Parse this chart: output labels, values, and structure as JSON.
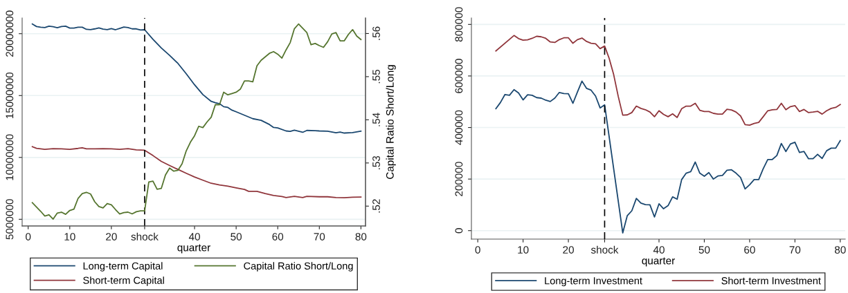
{
  "chart_data": [
    {
      "type": "line",
      "xlabel": "quarter",
      "y2label": "Capital Ratio Short/Long",
      "xlim": [
        -1.45,
        81.1
      ],
      "xticks": [
        0,
        10,
        20,
        {
          "value": 28,
          "label": "shock"
        },
        40,
        50,
        60,
        70,
        80
      ],
      "ylim": [
        4460000,
        21270000
      ],
      "yticks": [
        5000000,
        10000000,
        15000000,
        20000000
      ],
      "y2lim": [
        0.5154,
        0.5636
      ],
      "y2ticks": [
        {
          "value": 0.52,
          "label": ".52"
        },
        {
          "value": 0.53,
          "label": ".53"
        },
        {
          "value": 0.54,
          "label": ".54"
        },
        {
          "value": 0.55,
          "label": ".55"
        },
        {
          "value": 0.56,
          "label": ".56"
        }
      ],
      "grid": "y",
      "legend": "bottom",
      "ref_lines": [
        {
          "axis": "x",
          "value": 28,
          "color": "#000000",
          "line_style": "dashed"
        }
      ],
      "series": [
        {
          "name": "Long-term Capital",
          "color": "#1a476f",
          "x": [
            1,
            2,
            3,
            4,
            5,
            6,
            7,
            8,
            9,
            10,
            11,
            12,
            13,
            14,
            15,
            16,
            17,
            18,
            19,
            20,
            21,
            22,
            23,
            24,
            25,
            26,
            27,
            28,
            30,
            32,
            34,
            36,
            38,
            40,
            42,
            44,
            45,
            46,
            47,
            48,
            49,
            50,
            52,
            54,
            56,
            58,
            59,
            60,
            62,
            63,
            64,
            66,
            67,
            69,
            70,
            72,
            74,
            75,
            76,
            78,
            80
          ],
          "values": [
            20780000,
            20580000,
            20520000,
            20500000,
            20610000,
            20560000,
            20480000,
            20580000,
            20610000,
            20450000,
            20450000,
            20520000,
            20520000,
            20350000,
            20330000,
            20390000,
            20470000,
            20370000,
            20330000,
            20410000,
            20320000,
            20430000,
            20540000,
            20500000,
            20390000,
            20390000,
            20300000,
            20320000,
            19550000,
            18850000,
            18250000,
            17600000,
            16760000,
            15870000,
            15080000,
            14530000,
            14420000,
            14340000,
            14100000,
            14040000,
            13820000,
            13690000,
            13410000,
            13130000,
            13000000,
            12660000,
            12420000,
            12380000,
            12140000,
            12100000,
            12200000,
            12030000,
            12180000,
            12160000,
            12140000,
            12120000,
            11990000,
            12050000,
            11970000,
            12010000,
            12120000
          ]
        },
        {
          "name": "Short-term Capital",
          "color": "#90353b",
          "x": [
            1,
            2,
            4,
            6,
            8,
            10,
            12,
            13,
            14,
            16,
            18,
            20,
            22,
            24,
            26,
            28,
            30,
            32,
            34,
            36,
            38,
            40,
            42,
            44,
            46,
            48,
            50,
            52,
            53,
            55,
            57,
            59,
            61,
            62,
            64,
            66,
            67,
            70,
            72,
            74,
            76,
            78,
            80
          ],
          "values": [
            10870000,
            10740000,
            10650000,
            10710000,
            10690000,
            10650000,
            10730000,
            10780000,
            10690000,
            10690000,
            10710000,
            10690000,
            10650000,
            10710000,
            10610000,
            10580000,
            10150000,
            9680000,
            9350000,
            9030000,
            8720000,
            8420000,
            8160000,
            7910000,
            7780000,
            7680000,
            7540000,
            7410000,
            7260000,
            7260000,
            7080000,
            6930000,
            6840000,
            6760000,
            6850000,
            6760000,
            6850000,
            6820000,
            6820000,
            6760000,
            6740000,
            6780000,
            6800000
          ]
        },
        {
          "name": "Capital Ratio Short/Long",
          "color": "#55752f",
          "axis": "y2",
          "x": [
            1,
            2,
            3,
            4,
            5,
            6,
            7,
            8,
            9,
            10,
            11,
            12,
            13,
            14,
            15,
            16,
            17,
            18,
            19,
            20,
            21,
            22,
            23,
            24,
            25,
            26,
            27,
            28,
            29,
            30,
            31,
            32,
            33,
            34,
            35,
            36,
            37,
            38,
            39,
            40,
            41,
            42,
            43,
            44,
            45,
            46,
            47,
            48,
            49,
            50,
            51,
            52,
            53,
            54,
            55,
            56,
            57,
            58,
            59,
            60,
            61,
            62,
            63,
            64,
            65,
            66,
            67,
            68,
            69,
            70,
            71,
            72,
            73,
            74,
            75,
            76,
            77,
            78,
            79,
            80
          ],
          "values": [
            0.5208,
            0.5198,
            0.5188,
            0.5177,
            0.518,
            0.517,
            0.5184,
            0.5186,
            0.5181,
            0.519,
            0.5193,
            0.5218,
            0.5229,
            0.5232,
            0.5228,
            0.521,
            0.5199,
            0.5196,
            0.5206,
            0.5203,
            0.5192,
            0.5182,
            0.5185,
            0.5186,
            0.5182,
            0.5187,
            0.5189,
            0.5189,
            0.5256,
            0.5258,
            0.5239,
            0.5241,
            0.5272,
            0.5288,
            0.5281,
            0.5283,
            0.5298,
            0.5328,
            0.5348,
            0.5363,
            0.5385,
            0.5382,
            0.5395,
            0.5406,
            0.5435,
            0.5435,
            0.5464,
            0.5458,
            0.5461,
            0.5464,
            0.5471,
            0.549,
            0.549,
            0.5488,
            0.5525,
            0.5538,
            0.5546,
            0.5554,
            0.5558,
            0.5552,
            0.5543,
            0.5562,
            0.5579,
            0.5611,
            0.5622,
            0.5612,
            0.5602,
            0.5574,
            0.5577,
            0.5572,
            0.5568,
            0.5581,
            0.5599,
            0.5602,
            0.5583,
            0.5583,
            0.5598,
            0.5609,
            0.5594,
            0.5586
          ]
        }
      ]
    },
    {
      "type": "line",
      "xlabel": "quarter",
      "xlim": [
        -1.4,
        81.1
      ],
      "xticks": [
        0,
        10,
        20,
        {
          "value": 28,
          "label": "shock"
        },
        40,
        50,
        60,
        70,
        80
      ],
      "ylim": [
        -32900,
        825000
      ],
      "yticks": [
        0,
        200000,
        400000,
        600000,
        800000
      ],
      "grid": "y",
      "legend": "bottom",
      "ref_lines": [
        {
          "axis": "x",
          "value": 28,
          "color": "#000000",
          "line_style": "dashed"
        }
      ],
      "series": [
        {
          "name": "Long-term Investment",
          "color": "#1a476f",
          "x": [
            4,
            5,
            6,
            7,
            8,
            9,
            10,
            11,
            12,
            13,
            14,
            15,
            16,
            17,
            18,
            19,
            20,
            21,
            22,
            23,
            24,
            25,
            26,
            27,
            28,
            32,
            33,
            34,
            35,
            36,
            37,
            38,
            39,
            40,
            41,
            42,
            43,
            44,
            45,
            46,
            47,
            48,
            49,
            50,
            51,
            52,
            53,
            54,
            55,
            56,
            57,
            58,
            59,
            60,
            61,
            62,
            63,
            64,
            65,
            66,
            67,
            68,
            69,
            70,
            71,
            72,
            73,
            74,
            75,
            76,
            77,
            78,
            79,
            80
          ],
          "values": [
            473000,
            497000,
            528000,
            525000,
            547000,
            534000,
            507000,
            527000,
            525000,
            516000,
            514000,
            506000,
            501000,
            514000,
            536000,
            532000,
            531000,
            494000,
            538000,
            580000,
            552000,
            545000,
            522000,
            476000,
            488000,
            -9000,
            58000,
            77000,
            125000,
            107000,
            101000,
            100000,
            53000,
            104000,
            85000,
            97000,
            131000,
            122000,
            198000,
            223000,
            229000,
            266000,
            223000,
            211000,
            225000,
            200000,
            212000,
            214000,
            234000,
            236000,
            223000,
            206000,
            162000,
            178000,
            198000,
            198000,
            240000,
            276000,
            276000,
            291000,
            338000,
            307000,
            336000,
            343000,
            303000,
            307000,
            279000,
            279000,
            296000,
            280000,
            310000,
            320000,
            320000,
            349000
          ]
        },
        {
          "name": "Short-term Investment",
          "color": "#90353b",
          "x": [
            4,
            8,
            9,
            10,
            11,
            12,
            13,
            14,
            15,
            16,
            17,
            18,
            19,
            20,
            21,
            22,
            23,
            24,
            25,
            26,
            27,
            28,
            29,
            30,
            31,
            32,
            33,
            34,
            35,
            36,
            37,
            38,
            39,
            40,
            41,
            42,
            43,
            44,
            45,
            46,
            47,
            48,
            49,
            50,
            51,
            52,
            53,
            54,
            55,
            56,
            57,
            58,
            59,
            60,
            61,
            62,
            63,
            64,
            65,
            66,
            67,
            68,
            69,
            70,
            71,
            72,
            73,
            74,
            75,
            76,
            77,
            78,
            79,
            80
          ],
          "values": [
            697000,
            757000,
            745000,
            739000,
            740000,
            746000,
            754000,
            752000,
            746000,
            732000,
            730000,
            741000,
            748000,
            748000,
            727000,
            741000,
            747000,
            734000,
            727000,
            725000,
            706000,
            716000,
            668000,
            605000,
            521000,
            448000,
            449000,
            458000,
            483000,
            474000,
            469000,
            460000,
            442000,
            465000,
            451000,
            442000,
            453000,
            439000,
            473000,
            483000,
            483000,
            494000,
            467000,
            462000,
            462000,
            455000,
            452000,
            452000,
            471000,
            468000,
            460000,
            445000,
            411000,
            409000,
            416000,
            420000,
            442000,
            465000,
            469000,
            470000,
            494000,
            469000,
            481000,
            485000,
            462000,
            470000,
            458000,
            460000,
            463000,
            452000,
            465000,
            474000,
            478000,
            489000
          ]
        }
      ]
    }
  ]
}
